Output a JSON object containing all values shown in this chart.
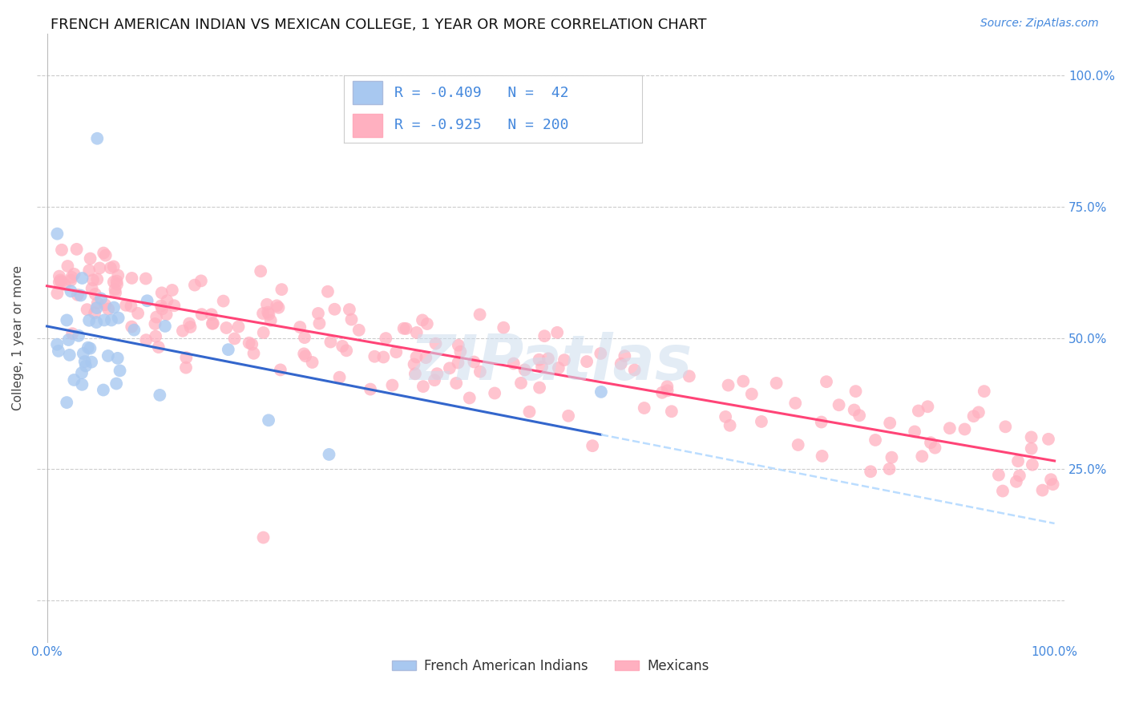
{
  "title": "FRENCH AMERICAN INDIAN VS MEXICAN COLLEGE, 1 YEAR OR MORE CORRELATION CHART",
  "source": "Source: ZipAtlas.com",
  "ylabel": "College, 1 year or more",
  "ytick_positions": [
    0.0,
    0.25,
    0.5,
    0.75,
    1.0
  ],
  "ytick_labels_right": [
    "",
    "25.0%",
    "50.0%",
    "75.0%",
    "100.0%"
  ],
  "xlim": [
    -0.01,
    1.01
  ],
  "ylim": [
    -0.08,
    1.08
  ],
  "blue_R": -0.409,
  "blue_N": 42,
  "pink_R": -0.925,
  "pink_N": 200,
  "blue_color": "#A8C8F0",
  "pink_color": "#FFB0C0",
  "blue_line_color": "#3366CC",
  "pink_line_color": "#FF4477",
  "dashed_color": "#BBDDFF",
  "legend_label_blue": "French American Indians",
  "legend_label_pink": "Mexicans",
  "watermark": "ZIPatlas",
  "title_fontsize": 13,
  "source_fontsize": 10,
  "axis_label_fontsize": 11,
  "tick_fontsize": 11,
  "legend_fontsize": 13
}
